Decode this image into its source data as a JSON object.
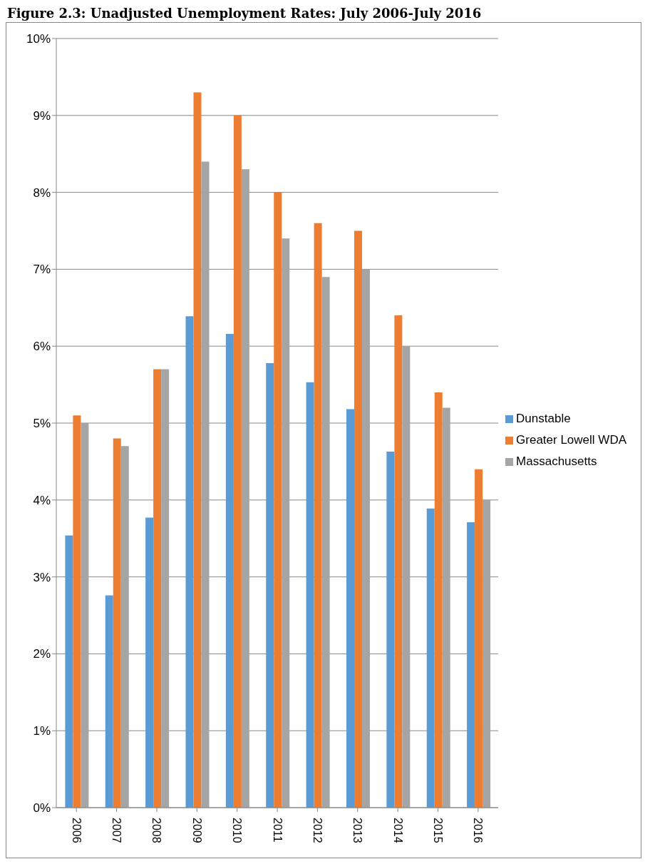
{
  "chart_data": {
    "type": "bar",
    "title": "Figure 2.3: Unadjusted Unemployment Rates: July 2006-July 2016",
    "categories": [
      "2006",
      "2007",
      "2008",
      "2009",
      "2010",
      "2011",
      "2012",
      "2013",
      "2014",
      "2015",
      "2016"
    ],
    "series": [
      {
        "name": "Dunstable",
        "color": "#5b9bd5",
        "values": [
          3.54,
          2.76,
          3.77,
          6.39,
          6.16,
          5.78,
          5.53,
          5.18,
          4.63,
          3.89,
          3.71
        ]
      },
      {
        "name": "Greater Lowell WDA",
        "color": "#ed7d31",
        "values": [
          5.1,
          4.8,
          5.7,
          9.3,
          9.0,
          8.0,
          7.6,
          7.5,
          6.4,
          5.4,
          4.4
        ]
      },
      {
        "name": "Massachusetts",
        "color": "#a5a5a5",
        "values": [
          5.0,
          4.7,
          5.7,
          8.4,
          8.3,
          7.4,
          6.9,
          7.0,
          6.0,
          5.2,
          4.0
        ]
      }
    ],
    "ylim": [
      0,
      10
    ],
    "yticks": [
      {
        "value": 0,
        "label": "0%"
      },
      {
        "value": 1,
        "label": "1%"
      },
      {
        "value": 2,
        "label": "2%"
      },
      {
        "value": 3,
        "label": "3%"
      },
      {
        "value": 4,
        "label": "4%"
      },
      {
        "value": 5,
        "label": "5%"
      },
      {
        "value": 6,
        "label": "6%"
      },
      {
        "value": 7,
        "label": "7%"
      },
      {
        "value": 8,
        "label": "8%"
      },
      {
        "value": 9,
        "label": "9%"
      },
      {
        "value": 10,
        "label": "10%"
      }
    ],
    "grid": "y",
    "legend": "right"
  }
}
